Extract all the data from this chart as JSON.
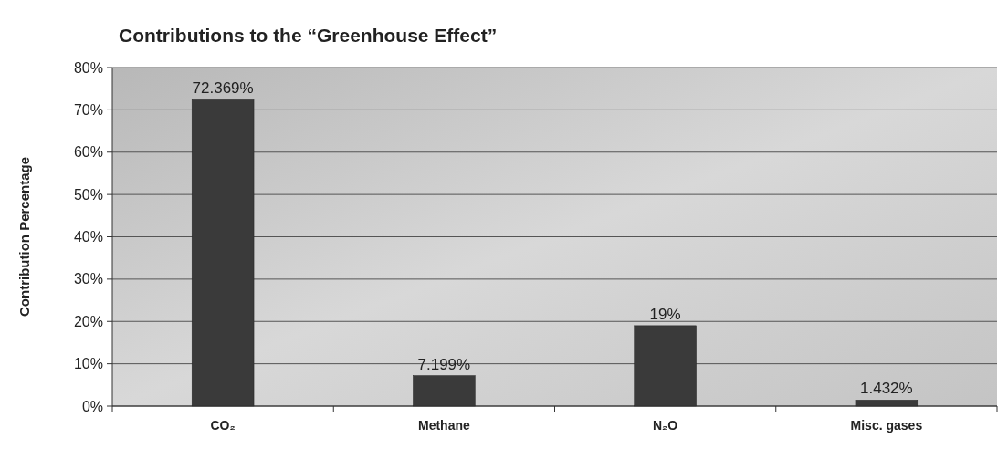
{
  "chart_data": {
    "type": "bar",
    "title": "Contributions to the “Greenhouse Effect”",
    "ylabel": "Contribution Percentage",
    "categories": [
      "CO₂",
      "Methane",
      "N₂O",
      "Misc. gases"
    ],
    "values": [
      72.369,
      7.199,
      19,
      1.432
    ],
    "value_labels": [
      "72.369%",
      "7.199%",
      "19%",
      "1.432%"
    ],
    "color": "#3a3a3a",
    "ylim": [
      0,
      80
    ],
    "yticks": [
      {
        "value": 0,
        "label": "0%"
      },
      {
        "value": 10,
        "label": "10%"
      },
      {
        "value": 20,
        "label": "20%"
      },
      {
        "value": 30,
        "label": "30%"
      },
      {
        "value": 40,
        "label": "40%"
      },
      {
        "value": 50,
        "label": "50%"
      },
      {
        "value": 60,
        "label": "60%"
      },
      {
        "value": 70,
        "label": "70%"
      },
      {
        "value": 80,
        "label": "80%"
      }
    ],
    "grid": "y"
  }
}
